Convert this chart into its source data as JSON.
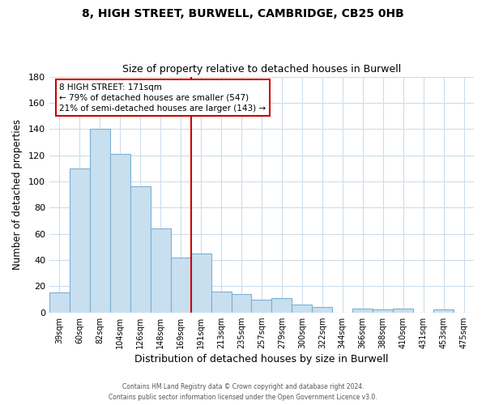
{
  "title": "8, HIGH STREET, BURWELL, CAMBRIDGE, CB25 0HB",
  "subtitle": "Size of property relative to detached houses in Burwell",
  "xlabel": "Distribution of detached houses by size in Burwell",
  "ylabel": "Number of detached properties",
  "bar_labels": [
    "39sqm",
    "60sqm",
    "82sqm",
    "104sqm",
    "126sqm",
    "148sqm",
    "169sqm",
    "191sqm",
    "213sqm",
    "235sqm",
    "257sqm",
    "279sqm",
    "300sqm",
    "322sqm",
    "344sqm",
    "366sqm",
    "388sqm",
    "410sqm",
    "431sqm",
    "453sqm",
    "475sqm"
  ],
  "bar_heights": [
    15,
    110,
    140,
    121,
    96,
    64,
    42,
    45,
    16,
    14,
    10,
    11,
    6,
    4,
    0,
    3,
    2,
    3,
    0,
    2,
    0
  ],
  "bar_color": "#c8dff0",
  "bar_edge_color": "#7ab0d4",
  "vline_after_index": 6,
  "vline_color": "#cc0000",
  "ylim": [
    0,
    180
  ],
  "yticks": [
    0,
    20,
    40,
    60,
    80,
    100,
    120,
    140,
    160,
    180
  ],
  "annotation_lines": [
    "8 HIGH STREET: 171sqm",
    "← 79% of detached houses are smaller (547)",
    "21% of semi-detached houses are larger (143) →"
  ],
  "footer1": "Contains HM Land Registry data © Crown copyright and database right 2024.",
  "footer2": "Contains public sector information licensed under the Open Government Licence v3.0.",
  "background_color": "#ffffff",
  "grid_color": "#ccdded"
}
